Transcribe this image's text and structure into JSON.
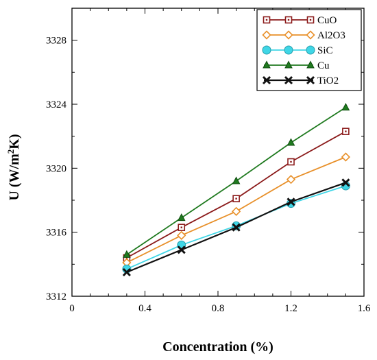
{
  "chart_data": {
    "type": "line",
    "xlabel": "Concentration (%)",
    "ylabel": "U (W/m2K)",
    "ylabel_parts": {
      "prefix": "U (W/m",
      "sup": "2",
      "suffix": "K)"
    },
    "xlim": [
      0,
      1.6
    ],
    "ylim": [
      3312,
      3330
    ],
    "xticks": [
      0,
      0.4,
      0.8,
      1.2,
      1.6
    ],
    "xtick_labels": [
      "0",
      "0.4",
      "0.8",
      "1.2",
      "1.6"
    ],
    "yticks": [
      3312,
      3316,
      3320,
      3324,
      3328
    ],
    "ytick_labels": [
      "3312",
      "3316",
      "3320",
      "3324",
      "3328"
    ],
    "grid": false,
    "legend_position": "top-right",
    "x": [
      0.3,
      0.6,
      0.9,
      1.2,
      1.5
    ],
    "series": [
      {
        "name": "CuO",
        "values": [
          3314.4,
          3316.3,
          3318.1,
          3320.4,
          3322.3
        ],
        "color": "#8b1a1a",
        "marker": "square-dot"
      },
      {
        "name": "Al2O3",
        "values": [
          3314.1,
          3315.8,
          3317.3,
          3319.3,
          3320.7
        ],
        "color": "#e8902a",
        "marker": "diamond"
      },
      {
        "name": "SiC",
        "values": [
          3313.7,
          3315.2,
          3316.4,
          3317.8,
          3318.9
        ],
        "color": "#3fd6e6",
        "marker": "circle"
      },
      {
        "name": "Cu",
        "values": [
          3314.6,
          3316.9,
          3319.2,
          3321.6,
          3323.8
        ],
        "color": "#1f7a1f",
        "marker": "triangle"
      },
      {
        "name": "TiO2",
        "values": [
          3313.5,
          3314.9,
          3316.3,
          3317.9,
          3319.1
        ],
        "color": "#111111",
        "marker": "x"
      }
    ]
  }
}
